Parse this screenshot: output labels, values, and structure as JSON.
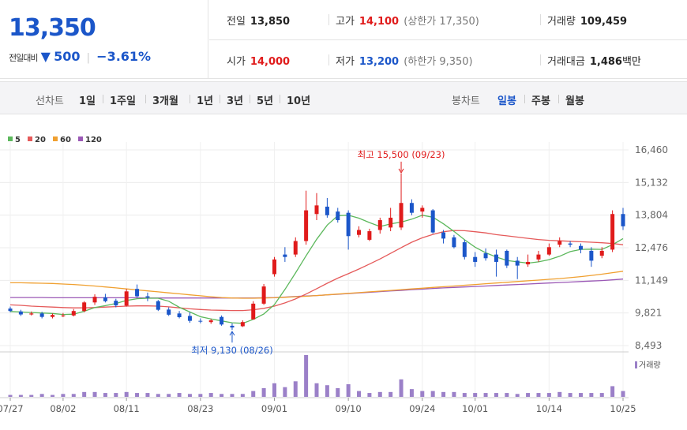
{
  "summary": {
    "price": "13,350",
    "change_label": "전일대비",
    "change_arrow": "▼",
    "change_value": "500",
    "change_pct": "−3.61%",
    "prev_close": {
      "label": "전일",
      "value": "13,850"
    },
    "high": {
      "label": "고가",
      "value": "14,100",
      "limit_label": "(상한가 17,350)"
    },
    "volume": {
      "label": "거래량",
      "value": "109,459"
    },
    "open": {
      "label": "시가",
      "value": "14,000"
    },
    "low": {
      "label": "저가",
      "value": "13,200",
      "limit_label": "(하한가 9,350)"
    },
    "amount": {
      "label": "거래대금",
      "value": "1,486",
      "unit": "백만"
    }
  },
  "toolbar": {
    "line_chart_label": "선차트",
    "ranges": [
      "1일",
      "1주일",
      "3개월",
      "1년",
      "3년",
      "5년",
      "10년"
    ],
    "candle_label": "봉차트",
    "periods": [
      "일봉",
      "주봉",
      "월봉"
    ],
    "active_period": "일봉"
  },
  "colors": {
    "up": "#e01b1b",
    "down": "#1b56c9",
    "ma5": "#5cb85c",
    "ma20": "#e55a5a",
    "ma60": "#f0a030",
    "ma120": "#9b59b6",
    "volume": "#9b80c8"
  },
  "chart_data": {
    "type": "candlestick",
    "legend": [
      {
        "name": "5",
        "color": "#5cb85c"
      },
      {
        "name": "20",
        "color": "#e55a5a"
      },
      {
        "name": "60",
        "color": "#f0a030"
      },
      {
        "name": "120",
        "color": "#9b59b6"
      }
    ],
    "y_ticks": [
      16460,
      15132,
      13804,
      12476,
      11149,
      9821,
      8493
    ],
    "y_tick_labels": [
      "16,460",
      "15,132",
      "13,804",
      "12,476",
      "11,149",
      "9,821",
      "8,493"
    ],
    "ylim": [
      8493,
      16460
    ],
    "x_tick_labels": [
      {
        "i": 0,
        "label": "07/27"
      },
      {
        "i": 5,
        "label": "08/02"
      },
      {
        "i": 11,
        "label": "08/11"
      },
      {
        "i": 18,
        "label": "08/23"
      },
      {
        "i": 25,
        "label": "09/01"
      },
      {
        "i": 32,
        "label": "09/10"
      },
      {
        "i": 39,
        "label": "09/24"
      },
      {
        "i": 44,
        "label": "10/01"
      },
      {
        "i": 51,
        "label": "10/14"
      },
      {
        "i": 58,
        "label": "10/25"
      }
    ],
    "high_annotation": {
      "text": "최고 15,500 (09/23)",
      "i": 37,
      "value": 15500
    },
    "low_annotation": {
      "text": "최저 9,130 (08/26)",
      "i": 21,
      "value": 9130
    },
    "volume_label": "거래량",
    "candles": [
      [
        10000,
        9900,
        10080,
        9850
      ],
      [
        9880,
        9760,
        9950,
        9700
      ],
      [
        9760,
        9800,
        9880,
        9720
      ],
      [
        9800,
        9660,
        9870,
        9600
      ],
      [
        9660,
        9740,
        9800,
        9600
      ],
      [
        9700,
        9720,
        9820,
        9650
      ],
      [
        9720,
        9900,
        9980,
        9680
      ],
      [
        9900,
        10250,
        10300,
        9850
      ],
      [
        10250,
        10480,
        10580,
        10150
      ],
      [
        10460,
        10300,
        10600,
        10250
      ],
      [
        10320,
        10130,
        10400,
        10050
      ],
      [
        10120,
        10700,
        10800,
        10080
      ],
      [
        10800,
        10500,
        10980,
        10450
      ],
      [
        10500,
        10450,
        10650,
        10300
      ],
      [
        10300,
        9950,
        10350,
        9900
      ],
      [
        9960,
        9750,
        10050,
        9700
      ],
      [
        9800,
        9650,
        9900,
        9600
      ],
      [
        9700,
        9500,
        9850,
        9420
      ],
      [
        9500,
        9470,
        9600,
        9400
      ],
      [
        9450,
        9520,
        9580,
        9380
      ],
      [
        9660,
        9350,
        9720,
        9300
      ],
      [
        9300,
        9230,
        9400,
        9130
      ],
      [
        9280,
        9450,
        9520,
        9250
      ],
      [
        9560,
        10200,
        10300,
        9550
      ],
      [
        10200,
        10900,
        11000,
        10150
      ],
      [
        11400,
        12000,
        12100,
        11300
      ],
      [
        12200,
        12100,
        12500,
        11900
      ],
      [
        12200,
        12750,
        12900,
        12100
      ],
      [
        12750,
        14000,
        14800,
        12600
      ],
      [
        13850,
        14200,
        14700,
        13600
      ],
      [
        14150,
        13800,
        14500,
        13700
      ],
      [
        13950,
        13600,
        14100,
        13500
      ],
      [
        13900,
        12950,
        14000,
        12400
      ],
      [
        13000,
        13200,
        13350,
        12900
      ],
      [
        12800,
        13150,
        13250,
        12750
      ],
      [
        13200,
        13600,
        13700,
        13050
      ],
      [
        13300,
        13700,
        14100,
        13150
      ],
      [
        13300,
        14300,
        15500,
        13200
      ],
      [
        14300,
        13900,
        14450,
        13800
      ],
      [
        13950,
        14100,
        14200,
        13700
      ],
      [
        14000,
        13100,
        14050,
        13050
      ],
      [
        13100,
        12850,
        13200,
        12650
      ],
      [
        12900,
        12500,
        13000,
        12450
      ],
      [
        12700,
        12100,
        12800,
        12000
      ],
      [
        12100,
        11900,
        12300,
        11700
      ],
      [
        12250,
        12050,
        12450,
        11950
      ],
      [
        12200,
        11900,
        12400,
        11300
      ],
      [
        12350,
        11750,
        12400,
        11650
      ],
      [
        11950,
        11750,
        12100,
        11200
      ],
      [
        11800,
        11900,
        12200,
        11700
      ],
      [
        12000,
        12200,
        12350,
        11900
      ],
      [
        12200,
        12500,
        12650,
        12150
      ],
      [
        12600,
        12750,
        12900,
        12500
      ],
      [
        12650,
        12600,
        12750,
        12500
      ],
      [
        12550,
        12400,
        12650,
        12250
      ],
      [
        12350,
        11950,
        12500,
        11700
      ],
      [
        12150,
        12350,
        12500,
        12050
      ],
      [
        12400,
        13850,
        14000,
        12300
      ],
      [
        13850,
        13350,
        14100,
        13200
      ]
    ],
    "volumes": [
      2,
      2,
      2,
      3,
      2,
      3,
      3,
      5,
      5,
      4,
      4,
      5,
      4,
      4,
      3,
      3,
      4,
      3,
      3,
      4,
      3,
      3,
      3,
      6,
      9,
      14,
      10,
      16,
      43,
      14,
      12,
      9,
      13,
      6,
      4,
      5,
      5,
      18,
      8,
      6,
      6,
      5,
      5,
      4,
      4,
      4,
      4,
      4,
      3,
      4,
      4,
      4,
      5,
      4,
      4,
      4,
      4,
      11,
      6
    ],
    "ma5": [
      9880,
      9860,
      9840,
      9820,
      9800,
      9760,
      9770,
      9890,
      10040,
      10120,
      10210,
      10330,
      10400,
      10420,
      10420,
      10300,
      10050,
      9860,
      9670,
      9580,
      9500,
      9420,
      9400,
      9560,
      9780,
      10160,
      10780,
      11450,
      12150,
      12820,
      13400,
      13780,
      13800,
      13680,
      13500,
      13340,
      13450,
      13520,
      13640,
      13800,
      13720,
      13450,
      13140,
      12800,
      12500,
      12270,
      12100,
      11960,
      11900,
      11850,
      11900,
      11990,
      12130,
      12320,
      12410,
      12420,
      12410,
      12600,
      12850
    ],
    "ma20": [
      10150,
      10130,
      10100,
      10080,
      10060,
      10040,
      10030,
      10030,
      10040,
      10060,
      10080,
      10100,
      10110,
      10110,
      10100,
      10070,
      10030,
      9990,
      9960,
      9940,
      9930,
      9920,
      9920,
      9950,
      10010,
      10100,
      10230,
      10390,
      10590,
      10810,
      11030,
      11240,
      11420,
      11610,
      11810,
      12020,
      12250,
      12480,
      12700,
      12880,
      13020,
      13130,
      13180,
      13170,
      13130,
      13080,
      13010,
      12960,
      12910,
      12860,
      12810,
      12780,
      12760,
      12740,
      12720,
      12700,
      12680,
      12650,
      12600
    ],
    "ma60": [
      11050,
      11050,
      11040,
      11030,
      11020,
      11000,
      10980,
      10950,
      10920,
      10880,
      10840,
      10800,
      10760,
      10720,
      10680,
      10640,
      10600,
      10560,
      10520,
      10480,
      10450,
      10430,
      10420,
      10420,
      10430,
      10440,
      10460,
      10480,
      10500,
      10530,
      10560,
      10590,
      10620,
      10650,
      10680,
      10710,
      10740,
      10770,
      10800,
      10830,
      10860,
      10890,
      10920,
      10950,
      10980,
      11010,
      11040,
      11070,
      11100,
      11130,
      11160,
      11190,
      11220,
      11260,
      11300,
      11350,
      11400,
      11460,
      11520
    ],
    "ma120": [
      10450,
      10450,
      10450,
      10450,
      10440,
      10440,
      10440,
      10440,
      10440,
      10440,
      10440,
      10440,
      10440,
      10430,
      10430,
      10430,
      10430,
      10430,
      10430,
      10430,
      10430,
      10430,
      10430,
      10430,
      10440,
      10450,
      10470,
      10490,
      10510,
      10530,
      10560,
      10580,
      10610,
      10640,
      10660,
      10690,
      10720,
      10740,
      10770,
      10790,
      10820,
      10840,
      10860,
      10880,
      10900,
      10920,
      10940,
      10960,
      10980,
      11000,
      11020,
      11040,
      11060,
      11080,
      11100,
      11120,
      11140,
      11170,
      11200
    ]
  }
}
